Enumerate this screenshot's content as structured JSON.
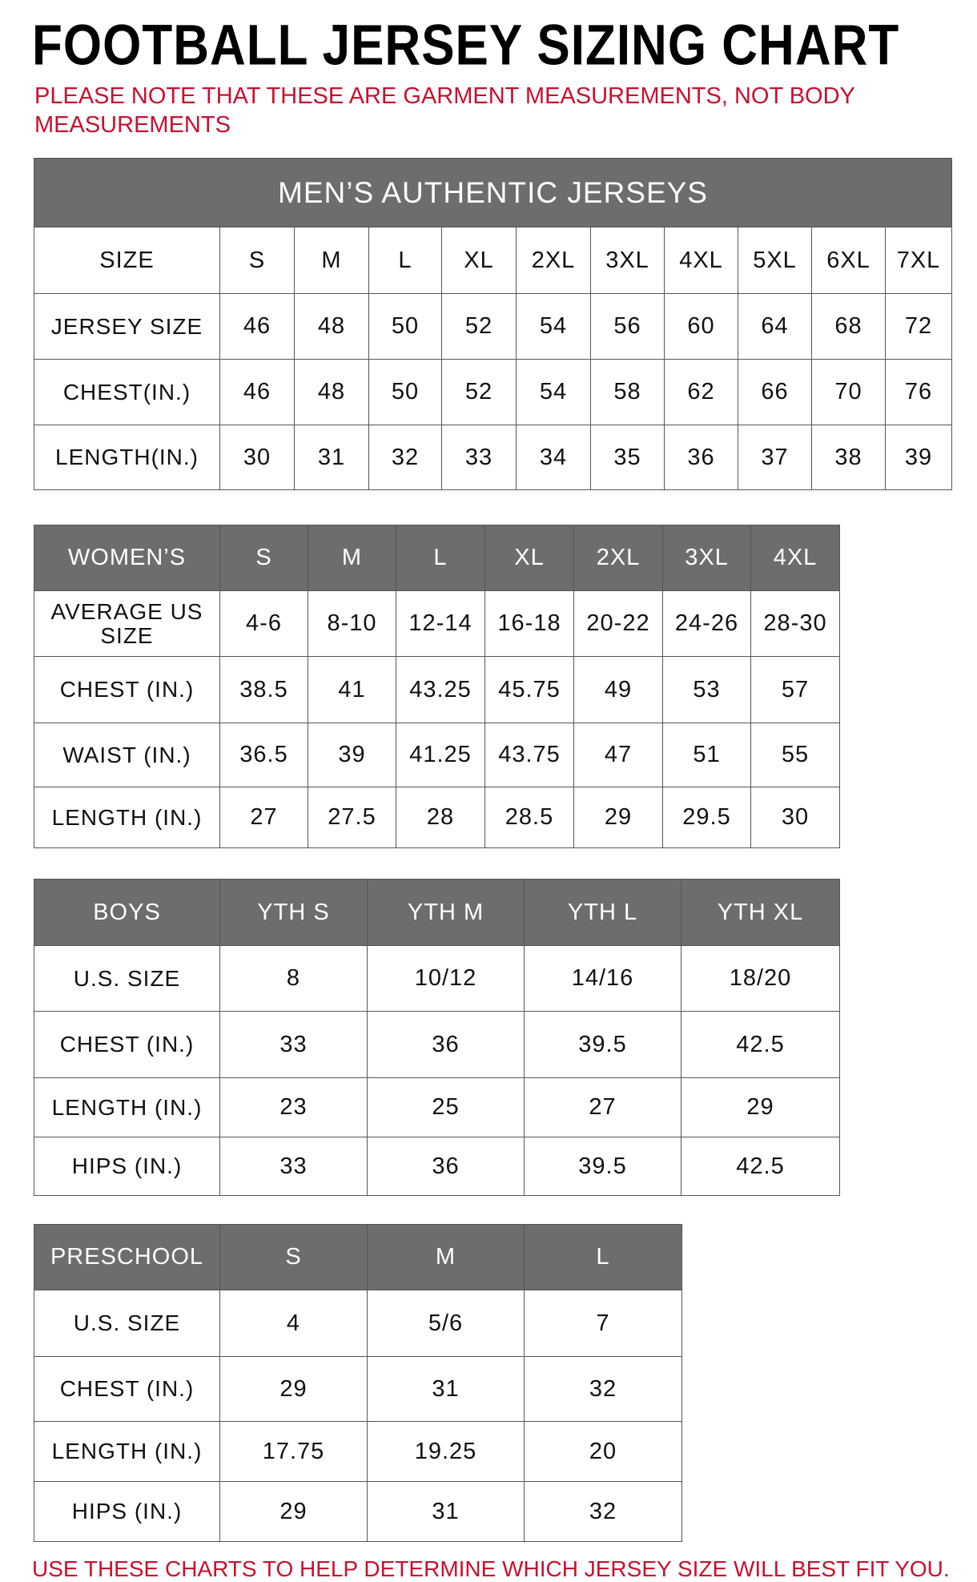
{
  "title": "FOOTBALL JERSEY SIZING CHART",
  "note": "PLEASE NOTE THAT THESE ARE GARMENT MEASUREMENTS, NOT BODY MEASUREMENTS",
  "footer": "USE THESE CHARTS TO HELP DETERMINE WHICH JERSEY SIZE WILL BEST FIT YOU.",
  "colors": {
    "header_bg": "#6d6d6d",
    "note_red": "#c8102e"
  },
  "tables": [
    {
      "id": "mens",
      "banner": "MEN’S AUTHENTIC JERSEYS",
      "header": [
        "SIZE",
        "S",
        "M",
        "L",
        "XL",
        "2XL",
        "3XL",
        "4XL",
        "5XL",
        "6XL",
        "7XL"
      ],
      "header_style": "plain",
      "rows": [
        [
          "JERSEY SIZE",
          "46",
          "48",
          "50",
          "52",
          "54",
          "56",
          "60",
          "64",
          "68",
          "72"
        ],
        [
          "CHEST(IN.)",
          "46",
          "48",
          "50",
          "52",
          "54",
          "58",
          "62",
          "66",
          "70",
          "76"
        ],
        [
          "LENGTH(IN.)",
          "30",
          "31",
          "32",
          "33",
          "34",
          "35",
          "36",
          "37",
          "38",
          "39"
        ]
      ]
    },
    {
      "id": "womens",
      "header": [
        "WOMEN’S",
        "S",
        "M",
        "L",
        "XL",
        "2XL",
        "3XL",
        "4XL"
      ],
      "header_style": "gray",
      "rows": [
        [
          "AVERAGE US SIZE",
          "4-6",
          "8-10",
          "12-14",
          "16-18",
          "20-22",
          "24-26",
          "28-30"
        ],
        [
          "CHEST (IN.)",
          "38.5",
          "41",
          "43.25",
          "45.75",
          "49",
          "53",
          "57"
        ],
        [
          "WAIST (IN.)",
          "36.5",
          "39",
          "41.25",
          "43.75",
          "47",
          "51",
          "55"
        ],
        [
          "LENGTH (IN.)",
          "27",
          "27.5",
          "28",
          "28.5",
          "29",
          "29.5",
          "30"
        ]
      ]
    },
    {
      "id": "boys",
      "header": [
        "BOYS",
        "YTH S",
        "YTH M",
        "YTH L",
        "YTH XL"
      ],
      "header_style": "gray",
      "rows": [
        [
          "U.S. SIZE",
          "8",
          "10/12",
          "14/16",
          "18/20"
        ],
        [
          "CHEST (IN.)",
          "33",
          "36",
          "39.5",
          "42.5"
        ],
        [
          "LENGTH (IN.)",
          "23",
          "25",
          "27",
          "29"
        ],
        [
          "HIPS (IN.)",
          "33",
          "36",
          "39.5",
          "42.5"
        ]
      ]
    },
    {
      "id": "preschool",
      "header": [
        "PRESCHOOL",
        "S",
        "M",
        "L"
      ],
      "header_style": "gray",
      "rows": [
        [
          "U.S. SIZE",
          "4",
          "5/6",
          "7"
        ],
        [
          "CHEST (IN.)",
          "29",
          "31",
          "32"
        ],
        [
          "LENGTH (IN.)",
          "17.75",
          "19.25",
          "20"
        ],
        [
          "HIPS (IN.)",
          "29",
          "31",
          "32"
        ]
      ]
    }
  ]
}
